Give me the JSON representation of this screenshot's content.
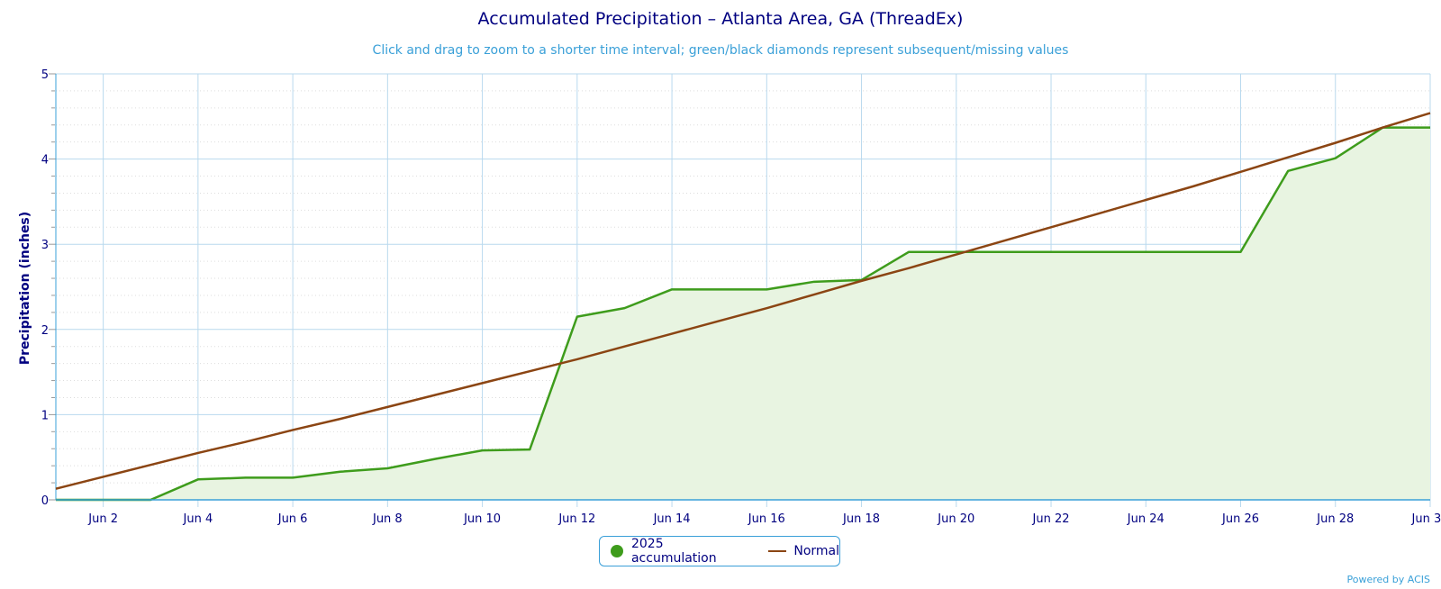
{
  "colors": {
    "title": "#000080",
    "subtitle": "#3aa0d8",
    "accumulation": "#3e9c1c",
    "accumulation_fill": "#e8f4e1",
    "normal": "#8b4513",
    "grid": "#b9d9ee",
    "minor_grid": "#dddddd",
    "axis": "#3aa0d8"
  },
  "legend": {
    "accumulation_label": "2025 accumulation",
    "normal_label": "Normal"
  },
  "credits": "Powered by ACIS",
  "chart_data": {
    "type": "area",
    "title": "Accumulated Precipitation – Atlanta Area, GA (ThreadEx)",
    "subtitle": "Click and drag to zoom to a shorter time interval; green/black diamonds represent subsequent/missing values",
    "xlabel": "",
    "ylabel": "Precipitation (inches)",
    "ylim": [
      0,
      5
    ],
    "yticks": [
      0,
      1,
      2,
      3,
      4,
      5
    ],
    "xlim": [
      "2025-06-01",
      "2025-06-30"
    ],
    "xticks": [
      "Jun 2",
      "Jun 4",
      "Jun 6",
      "Jun 8",
      "Jun 10",
      "Jun 12",
      "Jun 14",
      "Jun 16",
      "Jun 18",
      "Jun 20",
      "Jun 22",
      "Jun 24",
      "Jun 26",
      "Jun 28",
      "Jun 30"
    ],
    "grid": true,
    "legend_position": "bottom-center",
    "series": [
      {
        "name": "2025 accumulation",
        "type": "area",
        "x": [
          "2025-06-01",
          "2025-06-02",
          "2025-06-03",
          "2025-06-04",
          "2025-06-05",
          "2025-06-06",
          "2025-06-07",
          "2025-06-08",
          "2025-06-09",
          "2025-06-10",
          "2025-06-11",
          "2025-06-12",
          "2025-06-13",
          "2025-06-14",
          "2025-06-15",
          "2025-06-16",
          "2025-06-17",
          "2025-06-18",
          "2025-06-19",
          "2025-06-20",
          "2025-06-21",
          "2025-06-22",
          "2025-06-23",
          "2025-06-24",
          "2025-06-25",
          "2025-06-26",
          "2025-06-27",
          "2025-06-28",
          "2025-06-29",
          "2025-06-30"
        ],
        "values": [
          0.0,
          0.0,
          0.0,
          0.24,
          0.26,
          0.26,
          0.33,
          0.37,
          0.48,
          0.58,
          0.59,
          2.15,
          2.25,
          2.47,
          2.47,
          2.47,
          2.56,
          2.58,
          2.91,
          2.91,
          2.91,
          2.91,
          2.91,
          2.91,
          2.91,
          2.91,
          3.86,
          4.01,
          4.37,
          4.37
        ]
      },
      {
        "name": "Normal",
        "type": "line",
        "x": [
          "2025-06-01",
          "2025-06-02",
          "2025-06-03",
          "2025-06-04",
          "2025-06-05",
          "2025-06-06",
          "2025-06-07",
          "2025-06-08",
          "2025-06-09",
          "2025-06-10",
          "2025-06-11",
          "2025-06-12",
          "2025-06-13",
          "2025-06-14",
          "2025-06-15",
          "2025-06-16",
          "2025-06-17",
          "2025-06-18",
          "2025-06-19",
          "2025-06-20",
          "2025-06-21",
          "2025-06-22",
          "2025-06-23",
          "2025-06-24",
          "2025-06-25",
          "2025-06-26",
          "2025-06-27",
          "2025-06-28",
          "2025-06-29",
          "2025-06-30"
        ],
        "values": [
          0.13,
          0.27,
          0.41,
          0.55,
          0.68,
          0.82,
          0.95,
          1.09,
          1.23,
          1.37,
          1.51,
          1.65,
          1.8,
          1.95,
          2.1,
          2.25,
          2.41,
          2.57,
          2.72,
          2.88,
          3.04,
          3.2,
          3.36,
          3.52,
          3.68,
          3.85,
          4.02,
          4.19,
          4.37,
          4.54
        ]
      }
    ]
  }
}
